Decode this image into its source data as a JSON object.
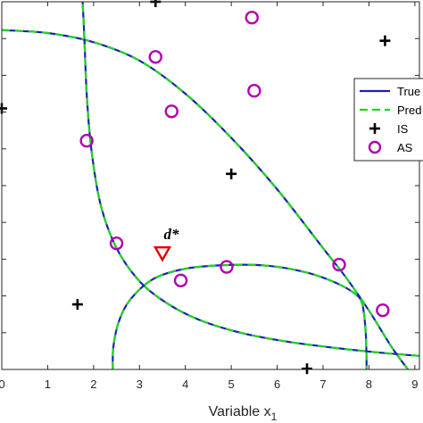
{
  "chart_data": {
    "type": "scatter",
    "xlabel": "Variable",
    "xlabel_sub": "1",
    "xlabel_var": "x",
    "xlim": [
      0,
      9.1
    ],
    "ylim": [
      0,
      1
    ],
    "xticks": [
      0,
      1,
      2,
      3,
      4,
      5,
      6,
      7,
      8,
      9
    ],
    "colors": {
      "true_curve": "#1f1fb4",
      "predicted_curve": "#22d422",
      "is_marker": "#000000",
      "as_marker": "#b000b0",
      "dstar_marker": "#e00000",
      "axis": "#262626"
    },
    "legend": {
      "placement": "right",
      "entries": [
        {
          "label": "True",
          "style": "solid-line",
          "color": "#1f1fb4"
        },
        {
          "label": "Pred",
          "style": "dashed-line",
          "color": "#22d422"
        },
        {
          "label": "IS",
          "style": "plus-marker",
          "color": "#000000"
        },
        {
          "label": "AS",
          "style": "circle-marker",
          "color": "#b000b0"
        }
      ]
    },
    "series": [
      {
        "name": "IS",
        "marker": "plus",
        "points": [
          [
            3.35,
            1.0
          ],
          [
            8.35,
            0.894
          ],
          [
            0.0,
            0.71
          ],
          [
            5.0,
            0.532
          ],
          [
            1.65,
            0.177
          ],
          [
            6.65,
            0.002
          ]
        ]
      },
      {
        "name": "AS",
        "marker": "circle",
        "points": [
          [
            5.45,
            0.957
          ],
          [
            3.35,
            0.85
          ],
          [
            5.5,
            0.758
          ],
          [
            3.7,
            0.702
          ],
          [
            1.85,
            0.622
          ],
          [
            2.5,
            0.343
          ],
          [
            3.9,
            0.242
          ],
          [
            4.9,
            0.279
          ],
          [
            7.35,
            0.285
          ],
          [
            8.3,
            0.161
          ]
        ]
      }
    ],
    "curves": [
      {
        "id": "true-curve-1",
        "points": [
          [
            0,
            0.923
          ],
          [
            1,
            0.915
          ],
          [
            2,
            0.89
          ],
          [
            3,
            0.84
          ],
          [
            4,
            0.75
          ],
          [
            5,
            0.63
          ],
          [
            6,
            0.49
          ],
          [
            7,
            0.33
          ],
          [
            7.5,
            0.25
          ],
          [
            8,
            0.16
          ],
          [
            8.5,
            0.06
          ],
          [
            8.85,
            0.0
          ]
        ]
      },
      {
        "id": "true-curve-2",
        "points": [
          [
            1.75,
            1.03
          ],
          [
            1.8,
            0.9
          ],
          [
            1.85,
            0.75
          ],
          [
            1.95,
            0.6
          ],
          [
            2.15,
            0.45
          ],
          [
            2.5,
            0.33
          ],
          [
            3.0,
            0.24
          ],
          [
            3.6,
            0.18
          ],
          [
            4.3,
            0.135
          ],
          [
            5.2,
            0.1
          ],
          [
            6.2,
            0.076
          ],
          [
            7.3,
            0.058
          ],
          [
            8.3,
            0.045
          ],
          [
            9.1,
            0.037
          ]
        ]
      },
      {
        "id": "true-curve-3",
        "points": [
          [
            2.42,
            0.0
          ],
          [
            2.43,
            0.06
          ],
          [
            2.55,
            0.13
          ],
          [
            2.8,
            0.19
          ],
          [
            3.3,
            0.246
          ],
          [
            4.0,
            0.274
          ],
          [
            4.9,
            0.284
          ],
          [
            5.8,
            0.282
          ],
          [
            6.6,
            0.265
          ],
          [
            7.2,
            0.24
          ],
          [
            7.65,
            0.21
          ],
          [
            7.85,
            0.18
          ],
          [
            7.93,
            0.1
          ],
          [
            7.95,
            0.0
          ]
        ]
      }
    ],
    "annotation": {
      "text": "d*",
      "point": [
        3.5,
        0.315
      ],
      "marker": "triangle-down"
    }
  }
}
